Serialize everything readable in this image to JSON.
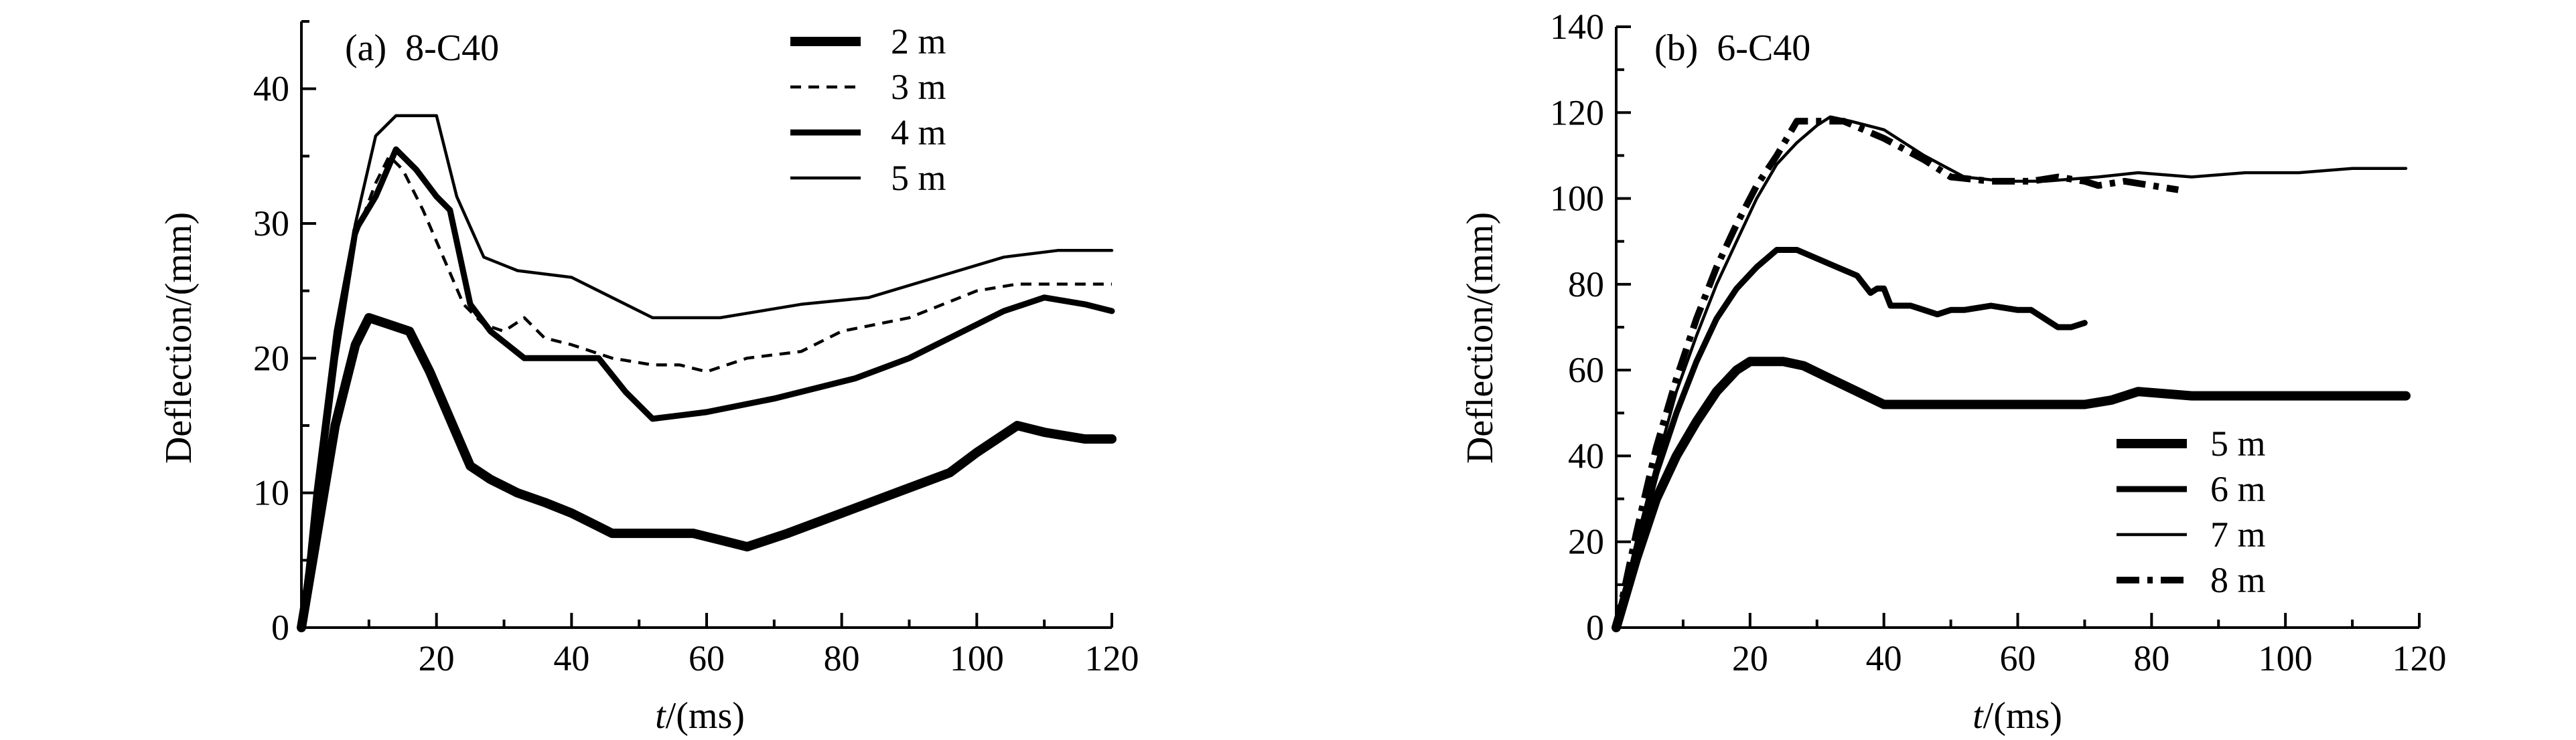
{
  "chart_data": [
    {
      "type": "line",
      "title": "(a)  8-C40",
      "xlabel_italic": "t",
      "xlabel_rest": "/(ms)",
      "ylabel": "Deflection/(mm)",
      "xlim": [
        0,
        120
      ],
      "ylim": [
        0,
        45
      ],
      "xticks": [
        20,
        40,
        60,
        80,
        100,
        120
      ],
      "yticks": [
        0,
        10,
        20,
        30,
        40
      ],
      "grid": false,
      "legend_position": "top-right",
      "series": [
        {
          "name": "2 m",
          "style": "thick",
          "x": [
            0,
            2,
            5,
            8,
            10,
            13,
            16,
            19,
            22,
            25,
            28,
            32,
            36,
            40,
            46,
            52,
            58,
            62,
            66,
            72,
            80,
            88,
            96,
            100,
            106,
            110,
            116,
            120
          ],
          "y": [
            0,
            6,
            15,
            21,
            23,
            22.5,
            22,
            19,
            15.5,
            12,
            11,
            10,
            9.3,
            8.5,
            7,
            7,
            7,
            6.5,
            6,
            7,
            8.5,
            10,
            11.5,
            13,
            15,
            14.5,
            14,
            14
          ]
        },
        {
          "name": "3 m",
          "style": "dashed",
          "x": [
            0,
            2,
            5,
            8,
            11,
            13,
            15,
            18,
            21,
            24,
            27,
            30,
            33,
            36,
            40,
            46,
            52,
            56,
            60,
            66,
            74,
            80,
            90,
            100,
            106,
            112,
            120
          ],
          "y": [
            0,
            9,
            21,
            29,
            33,
            35,
            34,
            31,
            27.5,
            24,
            22.5,
            22,
            23,
            21.5,
            21,
            20,
            19.5,
            19.5,
            19,
            20,
            20.5,
            22,
            23,
            25,
            25.5,
            25.5,
            25.5
          ]
        },
        {
          "name": "4 m",
          "style": "medium",
          "x": [
            0,
            2,
            5,
            8,
            11,
            14,
            17,
            20,
            22,
            25,
            28,
            33,
            36,
            40,
            44,
            48,
            52,
            60,
            70,
            82,
            90,
            96,
            104,
            110,
            116,
            120
          ],
          "y": [
            0,
            8,
            20,
            29.5,
            32,
            35.5,
            34,
            32,
            31,
            24,
            22,
            20,
            20,
            20,
            20,
            17.5,
            15.5,
            16,
            17,
            18.5,
            20,
            21.5,
            23.5,
            24.5,
            24,
            23.5
          ]
        },
        {
          "name": "5 m",
          "style": "thin",
          "x": [
            0,
            2,
            5,
            8,
            11,
            14,
            17,
            20,
            23,
            27,
            32,
            40,
            46,
            52,
            62,
            74,
            84,
            94,
            104,
            112,
            120
          ],
          "y": [
            0,
            10,
            22,
            30,
            36.5,
            38,
            38,
            38,
            32,
            27.5,
            26.5,
            26,
            24.5,
            23,
            23,
            24,
            24.5,
            26,
            27.5,
            28,
            28
          ]
        }
      ]
    },
    {
      "type": "line",
      "title": "(b)  6-C40",
      "xlabel_italic": "t",
      "xlabel_rest": "/(ms)",
      "ylabel": "Deflection/(mm)",
      "xlim": [
        0,
        120
      ],
      "ylim": [
        0,
        140
      ],
      "xticks": [
        20,
        40,
        60,
        80,
        100,
        120
      ],
      "yticks": [
        0,
        20,
        40,
        60,
        80,
        100,
        120,
        140
      ],
      "grid": false,
      "legend_position": "bottom-right",
      "series": [
        {
          "name": "5 m",
          "style": "thick",
          "x": [
            0,
            3,
            6,
            9,
            12,
            15,
            18,
            20,
            22,
            25,
            28,
            32,
            36,
            40,
            50,
            60,
            70,
            74,
            78,
            86,
            100,
            110,
            118
          ],
          "y": [
            0,
            16,
            30,
            40,
            48,
            55,
            60,
            62,
            62,
            62,
            61,
            58,
            55,
            52,
            52,
            52,
            52,
            53,
            55,
            54,
            54,
            54,
            54
          ]
        },
        {
          "name": "6 m",
          "style": "medium",
          "x": [
            0,
            3,
            6,
            9,
            12,
            15,
            18,
            21,
            24,
            27,
            30,
            33,
            36,
            38,
            39,
            40,
            41,
            42,
            44,
            46,
            48,
            50,
            52,
            56,
            60,
            62,
            64,
            66,
            68,
            70
          ],
          "y": [
            0,
            18,
            36,
            50,
            62,
            72,
            79,
            84,
            88,
            88,
            86,
            84,
            82,
            78,
            79,
            79,
            75,
            75,
            75,
            74,
            73,
            74,
            74,
            75,
            74,
            74,
            72,
            70,
            70,
            71
          ]
        },
        {
          "name": "7 m",
          "style": "thin",
          "x": [
            0,
            3,
            6,
            9,
            12,
            15,
            18,
            21,
            24,
            27,
            30,
            32,
            35,
            40,
            46,
            52,
            58,
            64,
            72,
            78,
            86,
            94,
            102,
            110,
            118
          ],
          "y": [
            0,
            20,
            38,
            55,
            68,
            80,
            90,
            100,
            108,
            113,
            117,
            119,
            118,
            116,
            110,
            105,
            104,
            104,
            105,
            106,
            105,
            106,
            106,
            107,
            107
          ]
        },
        {
          "name": "8 m",
          "style": "dashdot",
          "x": [
            0,
            3,
            6,
            9,
            12,
            15,
            18,
            21,
            24,
            27,
            30,
            34,
            40,
            46,
            50,
            56,
            62,
            66,
            70,
            72,
            76,
            80,
            84
          ],
          "y": [
            0,
            22,
            42,
            58,
            72,
            84,
            94,
            103,
            110,
            118,
            118,
            118,
            114,
            109,
            105,
            104,
            104,
            105,
            104,
            103,
            104,
            103,
            102
          ]
        }
      ]
    }
  ]
}
